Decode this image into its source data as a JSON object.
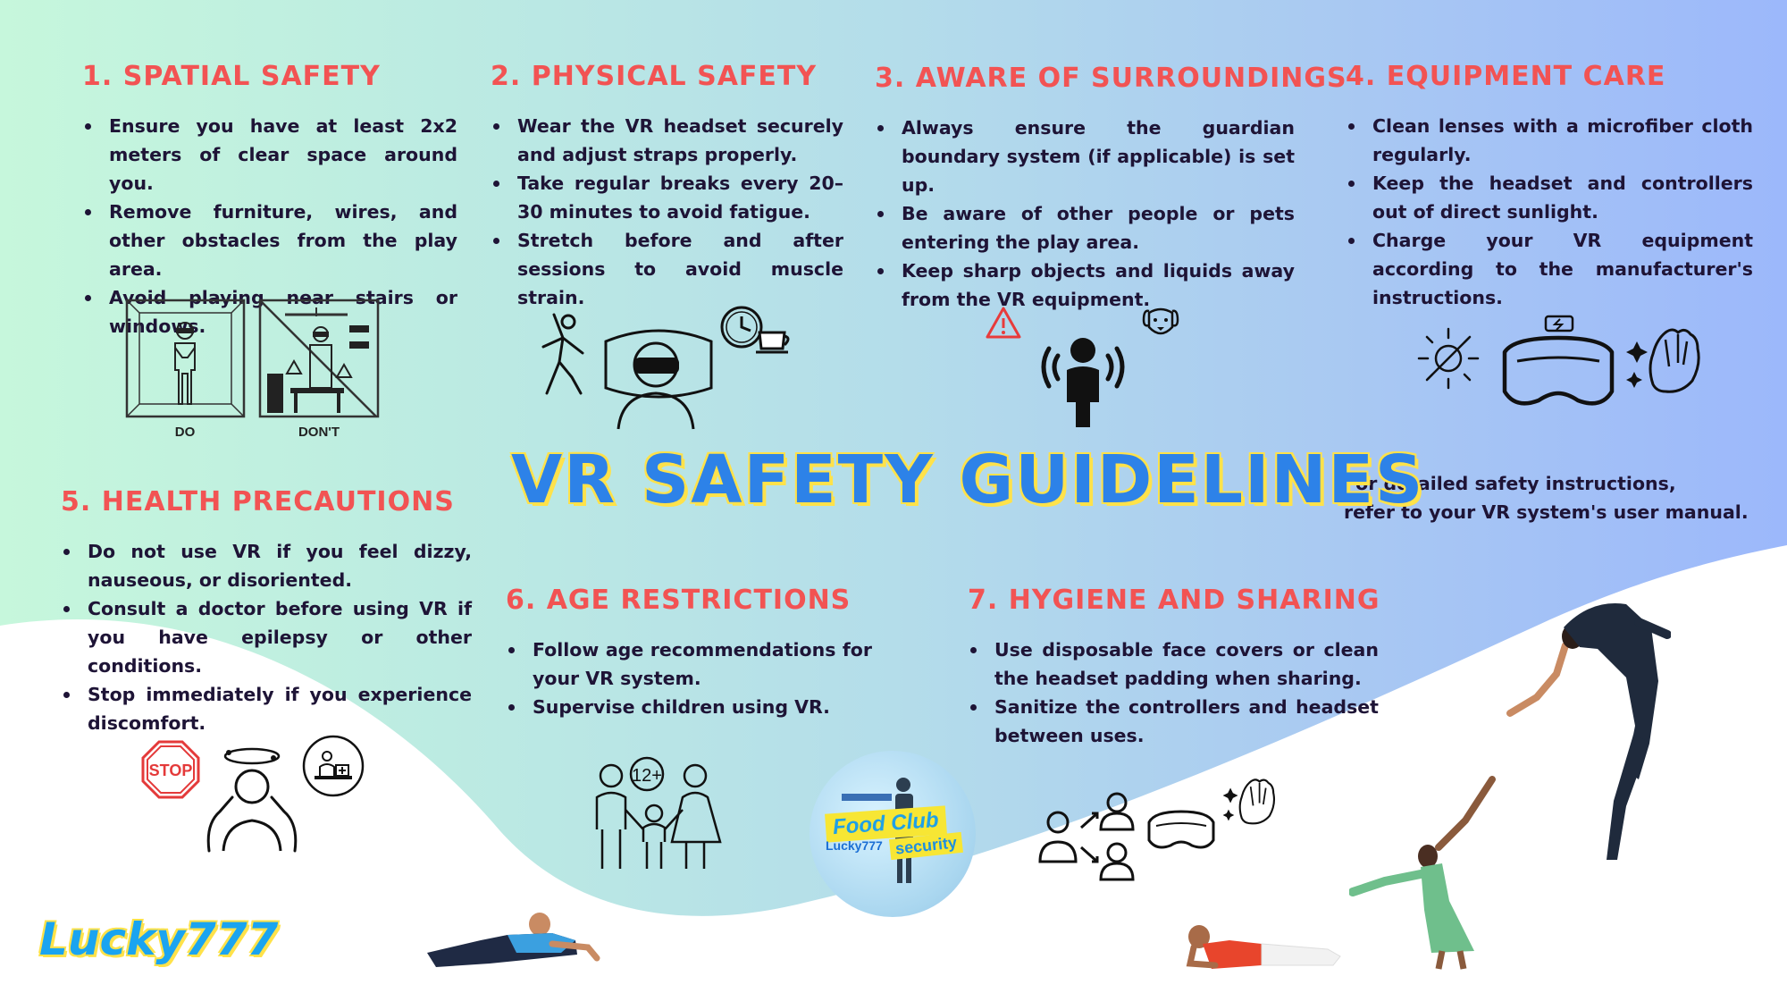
{
  "title": "VR SAFETY GUIDELINES",
  "sections": [
    {
      "title": "1. SPATIAL SAFETY",
      "bullets": [
        "Ensure you have at least 2x2 meters of clear space around you.",
        "Remove furniture, wires, and other obstacles from the play area.",
        "Avoid playing near stairs or windows."
      ],
      "icons": [
        "do-room-icon",
        "dont-room-icon"
      ],
      "icon_labels": [
        "DO",
        "DON'T"
      ]
    },
    {
      "title": "2. PHYSICAL SAFETY",
      "bullets": [
        "Wear the VR headset securely and adjust straps properly.",
        "Take regular breaks every 20–30 minutes to avoid fatigue.",
        "Stretch before and after sessions to avoid muscle strain."
      ],
      "icons": [
        "stretching-person-icon",
        "vr-headset-user-icon",
        "clock-coffee-break-icon"
      ]
    },
    {
      "title": "3. AWARE OF SURROUNDINGS",
      "bullets": [
        "Always ensure the guardian boundary system (if applicable) is set up.",
        "Be aware of other people or pets entering the play area.",
        "Keep sharp objects and liquids away from the VR equipment."
      ],
      "icons": [
        "warning-icon",
        "person-broadcast-icon",
        "dog-icon"
      ]
    },
    {
      "title": "4. EQUIPMENT CARE",
      "bullets": [
        "Clean lenses with a microfiber cloth regularly.",
        "Keep the headset and controllers out of direct sunlight.",
        "Charge your VR equipment according to the manufacturer's instructions."
      ],
      "icons": [
        "no-sun-icon",
        "vr-goggles-charging-icon",
        "clean-hand-icon"
      ]
    },
    {
      "title": "5. HEALTH PRECAUTIONS",
      "bullets": [
        "Do not use VR if you feel dizzy, nauseous, or disoriented.",
        "Consult a doctor before using VR if you have epilepsy or other conditions.",
        "Stop immediately if you experience discomfort."
      ],
      "icons": [
        "stop-sign-icon",
        "dizzy-person-icon",
        "doctor-consult-icon"
      ]
    },
    {
      "title": "6. AGE RESTRICTIONS",
      "bullets": [
        "Follow age recommendations for your VR system.",
        "Supervise children using VR."
      ],
      "icons": [
        "family-12-plus-icon"
      ],
      "badge": "12+"
    },
    {
      "title": "7. HYGIENE AND SHARING",
      "bullets": [
        "Use disposable face covers or clean the headset padding when sharing.",
        "Sanitize the controllers and headset between uses."
      ],
      "icons": [
        "sharing-users-icon",
        "vr-goggles-icon",
        "clean-hand-icon"
      ]
    }
  ],
  "note": {
    "line1": "For detailed safety instructions,",
    "line2": "refer to your VR system's user manual."
  },
  "brand": "Lucky777",
  "logo": {
    "line1": "Food Club",
    "line2": "Lucky777",
    "line3": "security"
  },
  "colors": {
    "section_title": "#f25353",
    "body_text": "#1e1436",
    "main_title": "#2d82e8",
    "title_shadow": "#ffe24a",
    "brand": "#1aa4f0"
  }
}
